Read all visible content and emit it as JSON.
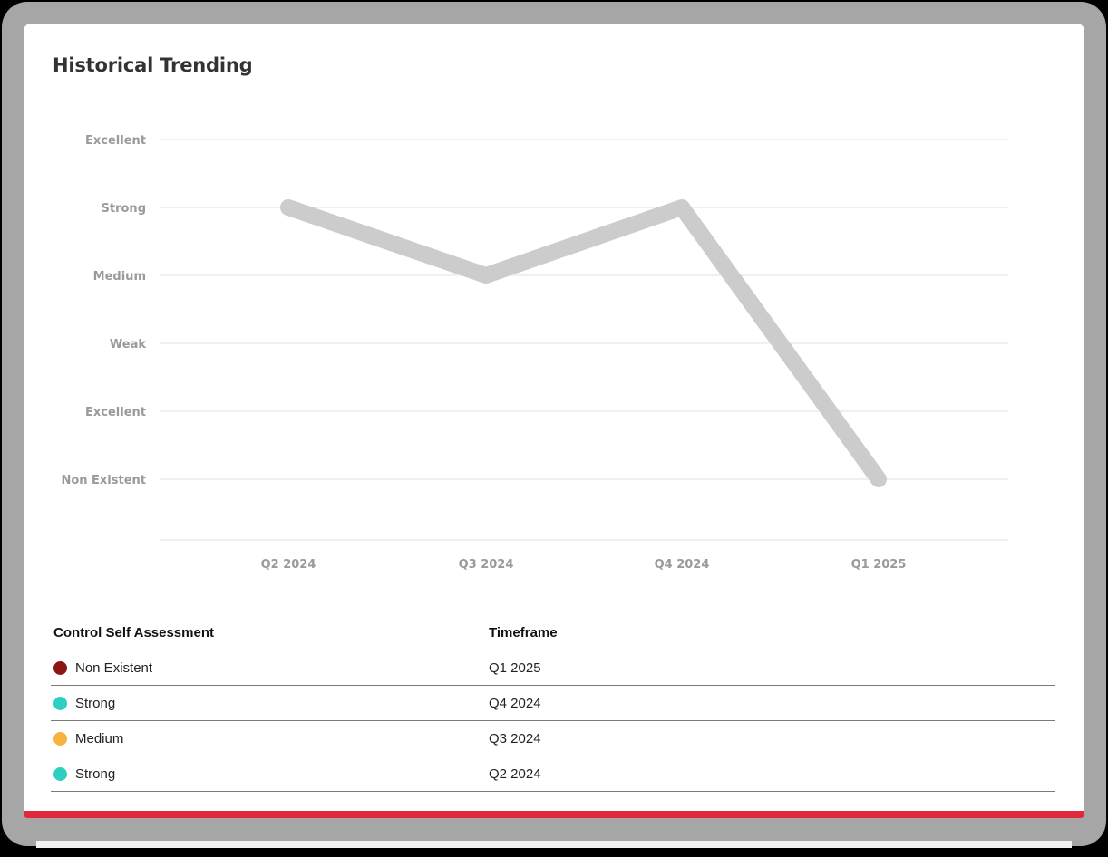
{
  "card": {
    "title": "Historical Trending"
  },
  "chart_data": {
    "type": "line",
    "title": "Historical Trending",
    "xlabel": "",
    "ylabel": "",
    "categories": [
      "Q2 2024",
      "Q3 2024",
      "Q4 2024",
      "Q1 2025"
    ],
    "y_tick_labels": [
      "Non Existent",
      "Excellent",
      "Weak",
      "Medium",
      "Strong",
      "Excellent"
    ],
    "y_tick_labels_top_to_bottom": [
      "Excellent",
      "Strong",
      "Medium",
      "Weak",
      "Excellent",
      "Non Existent"
    ],
    "ylim": [
      0,
      5
    ],
    "series": [
      {
        "name": "Control Self Assessment",
        "values": [
          4,
          3,
          4,
          0
        ],
        "value_labels": [
          "Strong",
          "Medium",
          "Strong",
          "Non Existent"
        ],
        "color": "#cccccc"
      }
    ],
    "grid": true,
    "legend": "none"
  },
  "table": {
    "headers": [
      "Control Self Assessment",
      "Timeframe"
    ],
    "rows": [
      {
        "assessment": "Non Existent",
        "timeframe": "Q1 2025",
        "color": "#8b1414"
      },
      {
        "assessment": "Strong",
        "timeframe": "Q4 2024",
        "color": "#2fcfbf"
      },
      {
        "assessment": "Medium",
        "timeframe": "Q3 2024",
        "color": "#f8b33e"
      },
      {
        "assessment": "Strong",
        "timeframe": "Q2 2024",
        "color": "#2fcfbf"
      }
    ]
  },
  "colors": {
    "accent_bar": "#e1283c",
    "line": "#cccccc",
    "gridline": "#e2e2e2"
  }
}
